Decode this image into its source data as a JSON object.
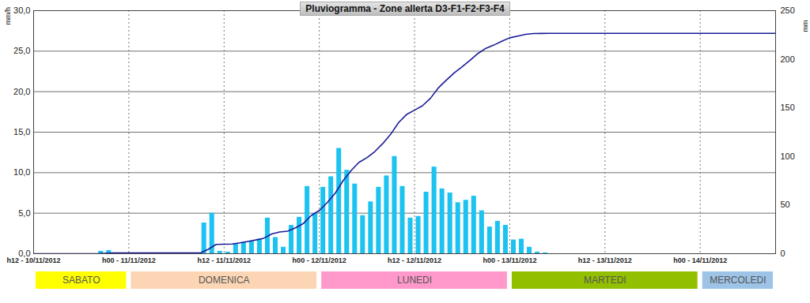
{
  "chart_data": {
    "type": "bar",
    "title": "Pluviogramma - Zone allerta D3-F1-F2-F3-F4",
    "y_label": "mm/h",
    "y2_label": "mm",
    "xlim": [
      0,
      93.5
    ],
    "xticks": [
      {
        "value": 0,
        "label": "h12 - 10/11/2012"
      },
      {
        "value": 12,
        "label": "h00 - 11/11/2012"
      },
      {
        "value": 24,
        "label": "h12 - 11/11/2012"
      },
      {
        "value": 36,
        "label": "h00 - 12/11/2012"
      },
      {
        "value": 48,
        "label": "h12 - 12/11/2012"
      },
      {
        "value": 60,
        "label": "h00 - 13/11/2012"
      },
      {
        "value": 72,
        "label": "h12 - 13/11/2012"
      },
      {
        "value": 84,
        "label": "h00 - 14/11/2012"
      }
    ],
    "ylim": [
      0,
      30
    ],
    "yticks": [
      {
        "value": 0,
        "label": "0,0"
      },
      {
        "value": 5,
        "label": "5,0"
      },
      {
        "value": 10,
        "label": "10,0"
      },
      {
        "value": 15,
        "label": "15,0"
      },
      {
        "value": 20,
        "label": "20,0"
      },
      {
        "value": 25,
        "label": "25,0"
      },
      {
        "value": 30,
        "label": "30,0"
      }
    ],
    "y2lim": [
      0,
      250
    ],
    "y2ticks": [
      0,
      50,
      100,
      150,
      200,
      250
    ],
    "grid": true,
    "series": [
      {
        "type": "bar",
        "color": "#1cc3f0",
        "x": [
          8,
          9,
          21,
          22,
          23,
          24,
          25,
          26,
          27,
          28,
          29,
          30,
          31,
          32,
          33,
          34,
          35,
          36,
          37,
          38,
          39,
          40,
          41,
          42,
          43,
          44,
          45,
          46,
          47,
          48,
          49,
          50,
          51,
          52,
          53,
          54,
          55,
          56,
          57,
          58,
          59,
          60,
          61,
          62,
          63,
          64
        ],
        "values": [
          0.3,
          0.4,
          3.8,
          5.0,
          0.3,
          0.2,
          1.2,
          1.4,
          1.5,
          1.8,
          4.4,
          2.0,
          0.8,
          3.5,
          4.5,
          8.3,
          5.0,
          8.2,
          9.5,
          13.0,
          10.3,
          8.6,
          4.7,
          6.4,
          8.2,
          9.6,
          12.0,
          8.3,
          4.4,
          4.6,
          7.6,
          10.7,
          8.0,
          7.5,
          6.3,
          6.6,
          7.1,
          5.3,
          3.3,
          4.0,
          3.5,
          1.7,
          1.8,
          0.8,
          0.2,
          0.1
        ]
      },
      {
        "type": "line",
        "axis": "y2",
        "color": "#1a1a99",
        "x": [
          0,
          8,
          9,
          10,
          21,
          22,
          23,
          24,
          25,
          26,
          27,
          28,
          29,
          30,
          31,
          32,
          33,
          34,
          35,
          36,
          37,
          38,
          39,
          40,
          41,
          42,
          43,
          44,
          45,
          46,
          47,
          48,
          49,
          50,
          51,
          52,
          53,
          54,
          55,
          56,
          57,
          58,
          59,
          60,
          61,
          62,
          63,
          64,
          65,
          93.5
        ],
        "values": [
          0,
          0,
          0.3,
          0.7,
          0.7,
          4.5,
          9.5,
          9.8,
          10.0,
          11.2,
          12.6,
          14.1,
          15.9,
          20.3,
          22.3,
          23.1,
          26.6,
          31.1,
          39.4,
          44.4,
          52.6,
          62.1,
          75.1,
          85.4,
          94.0,
          98.7,
          105.1,
          113.3,
          122.9,
          134.9,
          143.2,
          147.6,
          152.2,
          159.8,
          170.5,
          178.5,
          186.0,
          192.3,
          198.9,
          206.0,
          211.3,
          214.6,
          218.6,
          222.1,
          223.8,
          225.6,
          226.4,
          226.6,
          226.7,
          226.7
        ]
      }
    ],
    "day_bands": [
      {
        "label": "SABATO",
        "color": "#ffff00",
        "start": 0,
        "end": 12
      },
      {
        "label": "DOMENICA",
        "color": "#fcd5b4",
        "start": 12,
        "end": 36
      },
      {
        "label": "LUNEDI",
        "color": "#ff99cc",
        "start": 36,
        "end": 60
      },
      {
        "label": "MARTEDI",
        "color": "#92c000",
        "start": 60,
        "end": 84
      },
      {
        "label": "MERCOLEDI",
        "color": "#9dc3e6",
        "start": 84,
        "end": 93.5
      }
    ]
  }
}
